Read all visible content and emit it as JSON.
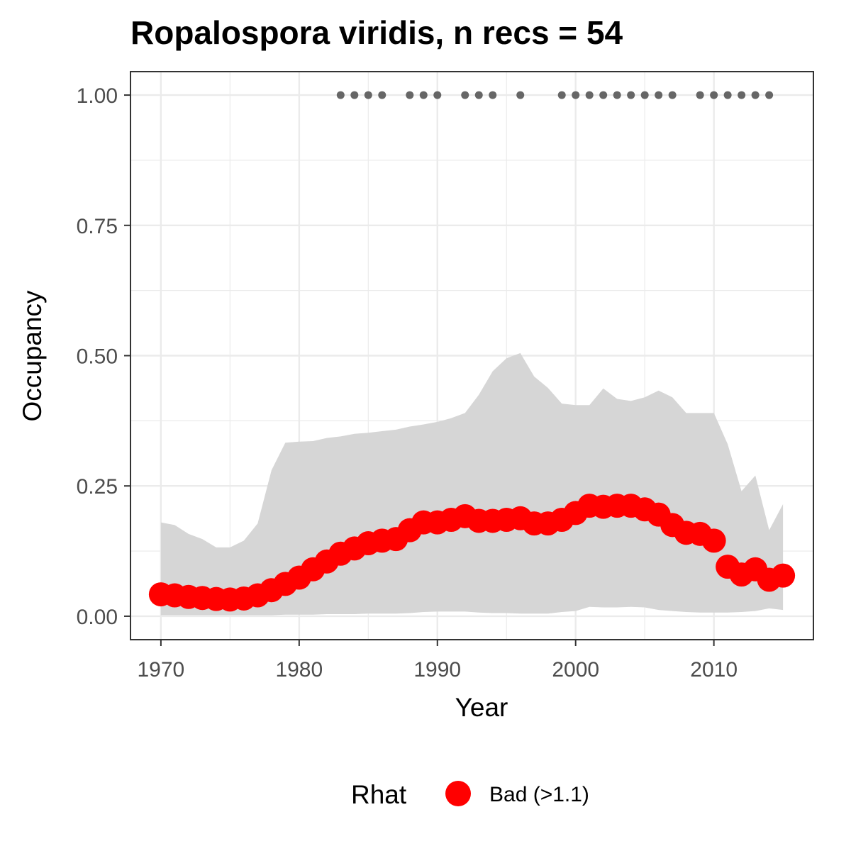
{
  "chart_data": {
    "type": "line",
    "title": "Ropalospora viridis, n recs = 54",
    "xlabel": "Year",
    "ylabel": "Occupancy",
    "xlim": [
      1967.8,
      2017.2
    ],
    "ylim": [
      -0.045,
      1.045
    ],
    "x_ticks": [
      1970,
      1980,
      1990,
      2000,
      2010
    ],
    "y_ticks": [
      0.0,
      0.25,
      0.5,
      0.75,
      1.0
    ],
    "y_tick_labels": [
      "0.00",
      "0.25",
      "0.50",
      "0.75",
      "1.00"
    ],
    "grid": true,
    "legend_position": "bottom",
    "colors": {
      "mean_points": "#ff0000",
      "ribbon": "#d6d6d6",
      "record_dots": "#666666",
      "grid": "#ebebeb",
      "panel_border": "#333333"
    },
    "series": [
      {
        "kind": "credible-interval",
        "x": [
          1970,
          1971,
          1972,
          1973,
          1974,
          1975,
          1976,
          1977,
          1978,
          1979,
          1980,
          1981,
          1982,
          1983,
          1984,
          1985,
          1986,
          1987,
          1988,
          1989,
          1990,
          1991,
          1992,
          1993,
          1994,
          1995,
          1996,
          1997,
          1998,
          1999,
          2000,
          2001,
          2002,
          2003,
          2004,
          2005,
          2006,
          2007,
          2008,
          2009,
          2010,
          2011,
          2012,
          2013,
          2014,
          2015
        ],
        "upper": [
          0.18,
          0.175,
          0.158,
          0.148,
          0.132,
          0.132,
          0.145,
          0.178,
          0.28,
          0.333,
          0.335,
          0.336,
          0.342,
          0.345,
          0.35,
          0.352,
          0.355,
          0.358,
          0.364,
          0.368,
          0.373,
          0.38,
          0.39,
          0.425,
          0.47,
          0.495,
          0.505,
          0.46,
          0.438,
          0.408,
          0.405,
          0.405,
          0.437,
          0.417,
          0.413,
          0.42,
          0.433,
          0.42,
          0.39,
          0.39,
          0.39,
          0.33,
          0.24,
          0.27,
          0.165,
          0.215
        ],
        "lower": [
          0.002,
          0.002,
          0.002,
          0.002,
          0.002,
          0.002,
          0.002,
          0.002,
          0.002,
          0.003,
          0.003,
          0.003,
          0.004,
          0.004,
          0.004,
          0.005,
          0.005,
          0.005,
          0.006,
          0.008,
          0.009,
          0.009,
          0.009,
          0.007,
          0.006,
          0.006,
          0.005,
          0.005,
          0.005,
          0.008,
          0.01,
          0.018,
          0.017,
          0.017,
          0.018,
          0.017,
          0.012,
          0.01,
          0.008,
          0.007,
          0.007,
          0.007,
          0.008,
          0.01,
          0.015,
          0.012
        ]
      },
      {
        "name": "Bad (>1.1)",
        "kind": "mean",
        "x": [
          1970,
          1971,
          1972,
          1973,
          1974,
          1975,
          1976,
          1977,
          1978,
          1979,
          1980,
          1981,
          1982,
          1983,
          1984,
          1985,
          1986,
          1987,
          1988,
          1989,
          1990,
          1991,
          1992,
          1993,
          1994,
          1995,
          1996,
          1997,
          1998,
          1999,
          2000,
          2001,
          2002,
          2003,
          2004,
          2005,
          2006,
          2007,
          2008,
          2009,
          2010,
          2011,
          2012,
          2013,
          2014,
          2015
        ],
        "values": [
          0.042,
          0.04,
          0.037,
          0.035,
          0.033,
          0.032,
          0.034,
          0.04,
          0.05,
          0.062,
          0.074,
          0.09,
          0.105,
          0.12,
          0.13,
          0.14,
          0.145,
          0.148,
          0.165,
          0.18,
          0.18,
          0.185,
          0.192,
          0.183,
          0.183,
          0.185,
          0.188,
          0.178,
          0.178,
          0.185,
          0.198,
          0.212,
          0.21,
          0.212,
          0.212,
          0.205,
          0.195,
          0.175,
          0.16,
          0.158,
          0.145,
          0.095,
          0.08,
          0.09,
          0.07,
          0.078
        ]
      },
      {
        "kind": "records",
        "x": [
          1983,
          1984,
          1985,
          1986,
          1988,
          1989,
          1990,
          1992,
          1993,
          1994,
          1996,
          1999,
          2000,
          2001,
          2002,
          2003,
          2004,
          2005,
          2006,
          2007,
          2009,
          2010,
          2011,
          2012,
          2013,
          2014
        ],
        "values": [
          1,
          1,
          1,
          1,
          1,
          1,
          1,
          1,
          1,
          1,
          1,
          1,
          1,
          1,
          1,
          1,
          1,
          1,
          1,
          1,
          1,
          1,
          1,
          1,
          1,
          1
        ]
      }
    ]
  },
  "legend": {
    "title": "Rhat",
    "items": [
      {
        "label": "Bad (>1.1)",
        "color": "#ff0000"
      }
    ]
  }
}
